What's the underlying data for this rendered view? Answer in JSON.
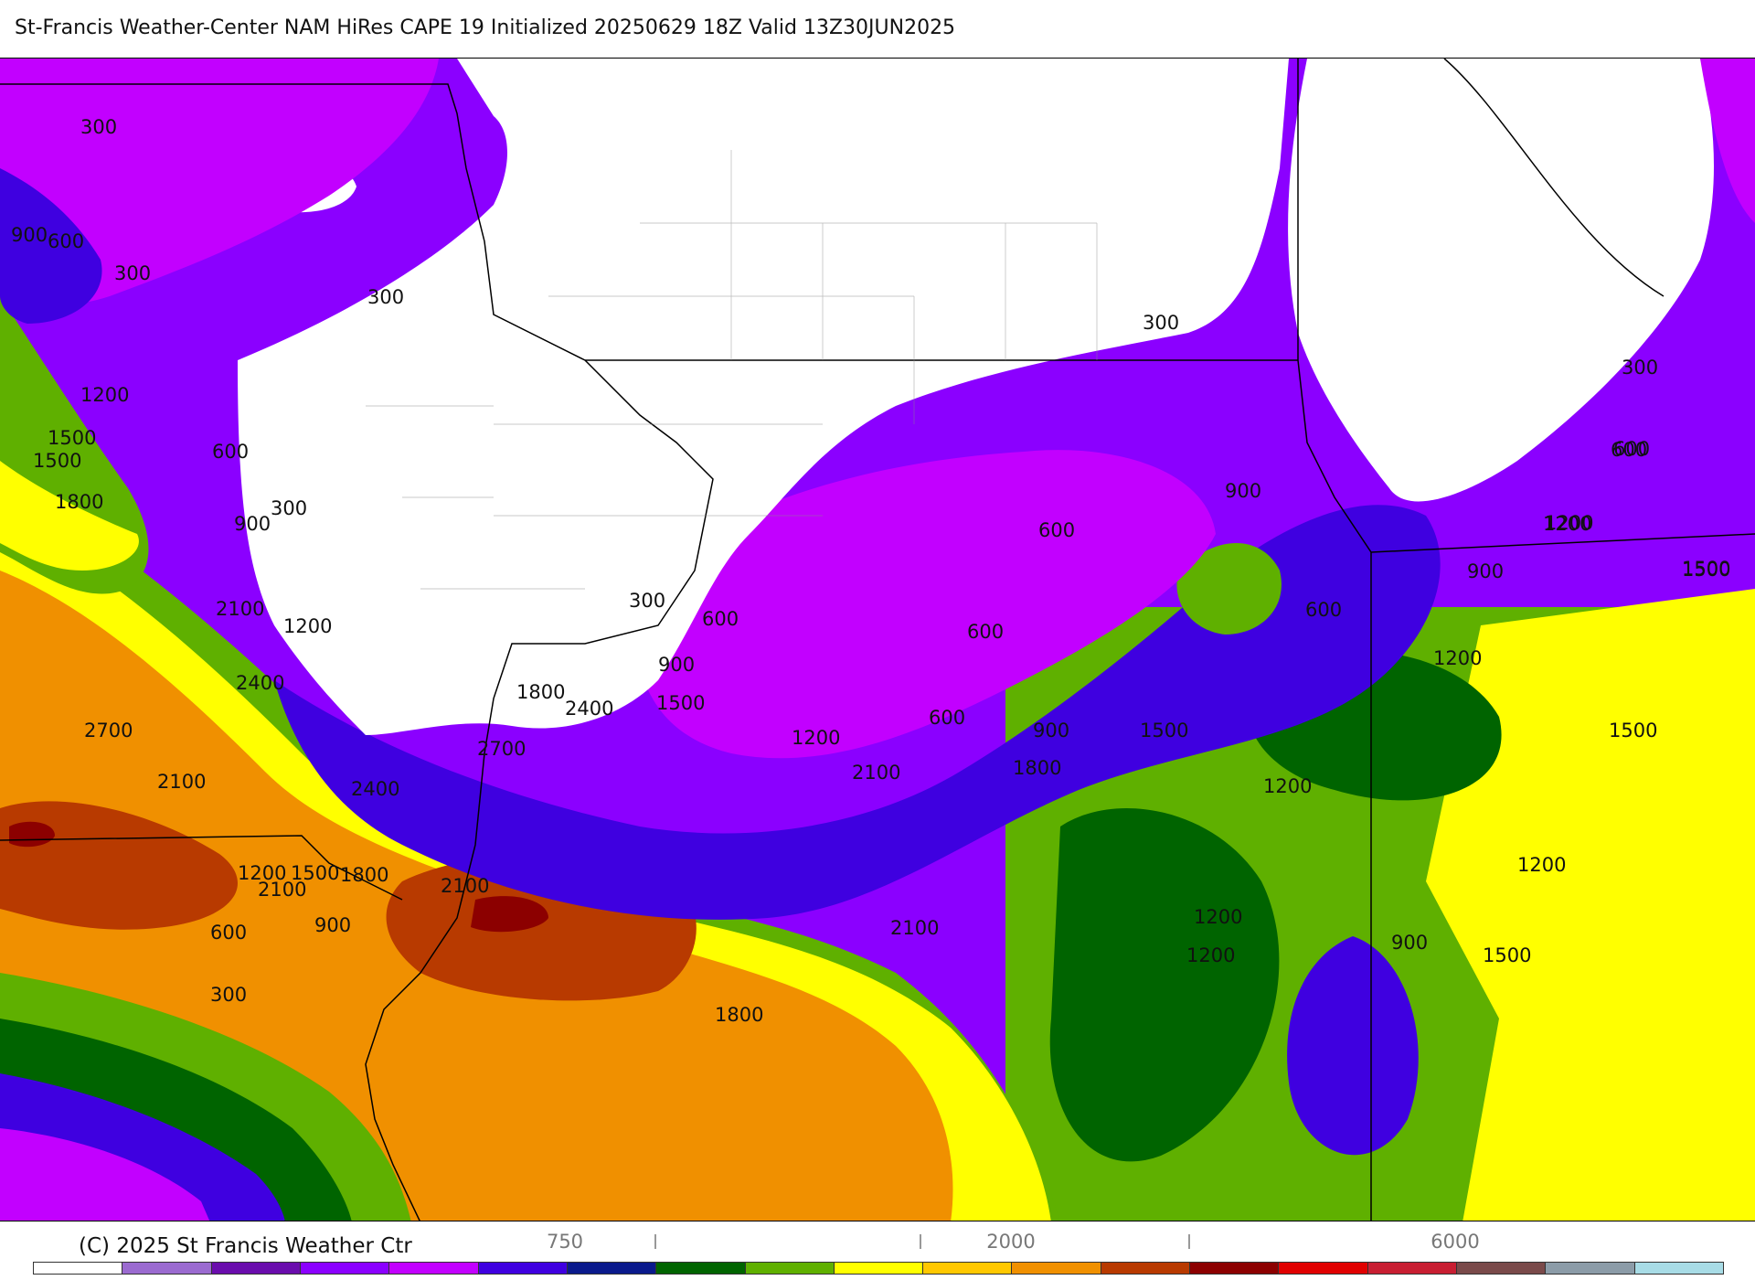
{
  "header": {
    "title": "St-Francis Weather-Center NAM HiRes CAPE  19 Initialized 20250629 18Z Valid 13Z30JUN2025"
  },
  "footer": {
    "copyright": "(C) 2025 St Francis Weather Ctr"
  },
  "colorbar": {
    "colors": [
      "#ffffff",
      "#9b6bd0",
      "#6a0dad",
      "#8b00ff",
      "#c200ff",
      "#3f00e0",
      "#0a1a8c",
      "#006400",
      "#5fb000",
      "#ffff00",
      "#ffc800",
      "#f09000",
      "#b83a00",
      "#8c0000",
      "#e00000",
      "#c81e32",
      "#7a4a4a",
      "#8c9ca8",
      "#a8dce6"
    ],
    "visible_tick_labels": [
      "750",
      "2000",
      "6000"
    ]
  },
  "contour_labels": [
    {
      "text": "300"
    },
    {
      "text": "900"
    },
    {
      "text": "600"
    },
    {
      "text": "300"
    },
    {
      "text": "300"
    },
    {
      "text": "1200"
    },
    {
      "text": "1500"
    },
    {
      "text": "1500"
    },
    {
      "text": "600"
    },
    {
      "text": "1800"
    },
    {
      "text": "300"
    },
    {
      "text": "900"
    },
    {
      "text": "2100"
    },
    {
      "text": "1200"
    },
    {
      "text": "2400"
    },
    {
      "text": "2700"
    },
    {
      "text": "2100"
    },
    {
      "text": "1800"
    },
    {
      "text": "2400"
    },
    {
      "text": "2700"
    },
    {
      "text": "2400"
    },
    {
      "text": "2100"
    },
    {
      "text": "1200"
    },
    {
      "text": "1500"
    },
    {
      "text": "1800"
    },
    {
      "text": "2100"
    },
    {
      "text": "900"
    },
    {
      "text": "600"
    },
    {
      "text": "300"
    },
    {
      "text": "300"
    },
    {
      "text": "600"
    },
    {
      "text": "900"
    },
    {
      "text": "1500"
    },
    {
      "text": "1200"
    },
    {
      "text": "600"
    },
    {
      "text": "600"
    },
    {
      "text": "600"
    },
    {
      "text": "900"
    },
    {
      "text": "1800"
    },
    {
      "text": "2100"
    },
    {
      "text": "2100"
    },
    {
      "text": "1800"
    },
    {
      "text": "1500"
    },
    {
      "text": "300"
    },
    {
      "text": "900"
    },
    {
      "text": "600"
    },
    {
      "text": "600"
    },
    {
      "text": "900"
    },
    {
      "text": "1200"
    },
    {
      "text": "1200"
    },
    {
      "text": "1500"
    },
    {
      "text": "1500"
    },
    {
      "text": "1200"
    },
    {
      "text": "1200"
    },
    {
      "text": "1200"
    },
    {
      "text": "1200"
    },
    {
      "text": "900"
    },
    {
      "text": "1500"
    },
    {
      "text": "300"
    },
    {
      "text": "600"
    },
    {
      "text": "1200"
    },
    {
      "text": "1500"
    }
  ]
}
